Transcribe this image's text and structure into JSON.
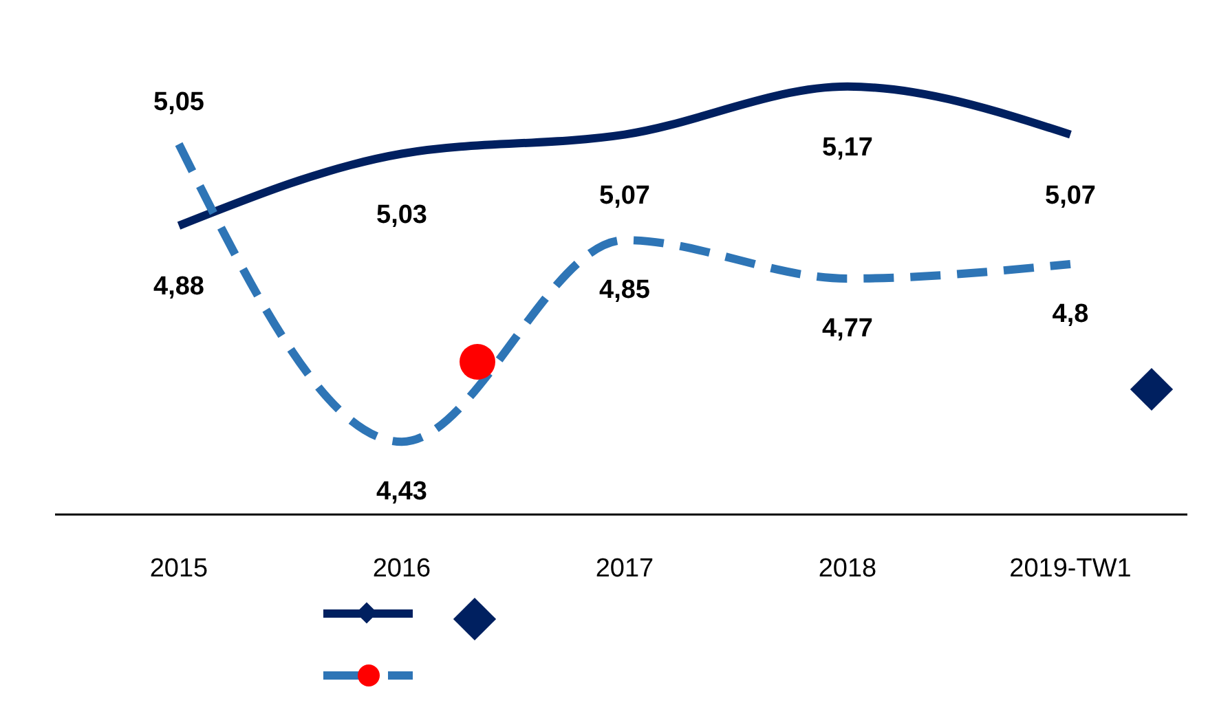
{
  "chart_data": {
    "type": "line",
    "categories": [
      "2015",
      "2016",
      "2017",
      "2018",
      "2019-TW1"
    ],
    "series": [
      {
        "color": "#002060",
        "values": [
          4.88,
          5.03,
          5.07,
          5.17,
          5.07
        ],
        "value_labels": [
          "4,88",
          "5,03",
          "5,07",
          "5,17",
          "5,07"
        ],
        "line_style": "solid"
      },
      {
        "color": "#2e75b6",
        "values": [
          5.05,
          4.43,
          4.85,
          4.77,
          4.8
        ],
        "value_labels": [
          "5,05",
          "4,43",
          "4,85",
          "4,77",
          "4,8"
        ],
        "line_style": "dashed"
      }
    ],
    "grid": false
  }
}
